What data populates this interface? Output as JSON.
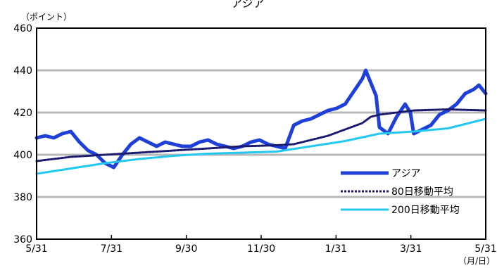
{
  "chart_data": {
    "type": "line",
    "title": "アジア",
    "ylabel": "（ポイント）",
    "xlabel": "（月/日）",
    "ylim": [
      360,
      460
    ],
    "yticks": [
      360,
      380,
      400,
      420,
      440,
      460
    ],
    "xticks": [
      "5/31",
      "7/31",
      "9/30",
      "11/30",
      "1/31",
      "3/31",
      "5/31"
    ],
    "n_points": 262,
    "grid": "horizontal",
    "legend_position": "lower-right",
    "series": [
      {
        "name": "アジア",
        "color": "#1f3fd9",
        "style": "solid-thick",
        "points": [
          [
            0,
            408
          ],
          [
            5,
            409
          ],
          [
            10,
            408
          ],
          [
            15,
            410
          ],
          [
            20,
            411
          ],
          [
            25,
            406
          ],
          [
            30,
            402
          ],
          [
            35,
            400
          ],
          [
            40,
            396
          ],
          [
            45,
            394
          ],
          [
            50,
            400
          ],
          [
            55,
            405
          ],
          [
            60,
            408
          ],
          [
            65,
            406
          ],
          [
            70,
            404
          ],
          [
            75,
            406
          ],
          [
            80,
            405
          ],
          [
            85,
            404
          ],
          [
            90,
            404
          ],
          [
            95,
            406
          ],
          [
            100,
            407
          ],
          [
            105,
            405
          ],
          [
            110,
            404
          ],
          [
            115,
            403
          ],
          [
            120,
            404
          ],
          [
            125,
            406
          ],
          [
            130,
            407
          ],
          [
            135,
            405
          ],
          [
            140,
            404
          ],
          [
            145,
            403
          ],
          [
            150,
            414
          ],
          [
            155,
            416
          ],
          [
            160,
            417
          ],
          [
            165,
            419
          ],
          [
            170,
            421
          ],
          [
            175,
            422
          ],
          [
            180,
            424
          ],
          [
            185,
            430
          ],
          [
            190,
            436
          ],
          [
            192,
            440
          ],
          [
            195,
            434
          ],
          [
            198,
            428
          ],
          [
            200,
            413
          ],
          [
            205,
            410
          ],
          [
            210,
            418
          ],
          [
            215,
            424
          ],
          [
            218,
            420
          ],
          [
            220,
            410
          ],
          [
            225,
            412
          ],
          [
            230,
            414
          ],
          [
            235,
            419
          ],
          [
            240,
            421
          ],
          [
            245,
            424
          ],
          [
            250,
            429
          ],
          [
            255,
            431
          ],
          [
            258,
            433
          ],
          [
            262,
            429
          ]
        ]
      },
      {
        "name": "80日移動平均",
        "color": "#1a1a6e",
        "style": "dashed",
        "points": [
          [
            0,
            397
          ],
          [
            20,
            399
          ],
          [
            40,
            400
          ],
          [
            60,
            401
          ],
          [
            80,
            402
          ],
          [
            100,
            403
          ],
          [
            120,
            404
          ],
          [
            140,
            404.5
          ],
          [
            150,
            405
          ],
          [
            160,
            407
          ],
          [
            170,
            409
          ],
          [
            180,
            412
          ],
          [
            190,
            415
          ],
          [
            195,
            418
          ],
          [
            200,
            419
          ],
          [
            210,
            420
          ],
          [
            220,
            421
          ],
          [
            240,
            421.5
          ],
          [
            262,
            421
          ]
        ]
      },
      {
        "name": "200日移動平均",
        "color": "#22c8f0",
        "style": "solid",
        "points": [
          [
            0,
            391
          ],
          [
            20,
            393.5
          ],
          [
            40,
            396
          ],
          [
            60,
            398
          ],
          [
            80,
            399.5
          ],
          [
            100,
            400.5
          ],
          [
            120,
            401
          ],
          [
            140,
            401.5
          ],
          [
            160,
            404
          ],
          [
            180,
            406.5
          ],
          [
            200,
            410
          ],
          [
            220,
            411
          ],
          [
            240,
            412.5
          ],
          [
            262,
            417
          ]
        ]
      }
    ]
  }
}
